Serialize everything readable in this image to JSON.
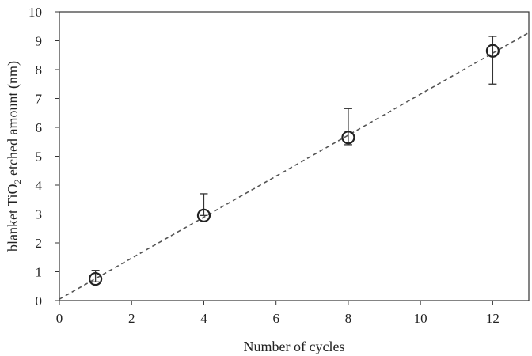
{
  "chart_data": {
    "type": "scatter",
    "xlabel": "Number of cycles",
    "ylabel": {
      "prefix": "blanket TiO",
      "subscript": "2",
      "suffix": " etched amount (nm)"
    },
    "xlim": [
      0,
      13
    ],
    "ylim": [
      0,
      10
    ],
    "xticks": [
      0,
      2,
      4,
      6,
      8,
      10,
      12
    ],
    "yticks": [
      0,
      1,
      2,
      3,
      4,
      5,
      6,
      7,
      8,
      9,
      10
    ],
    "grid": false,
    "legend": "none",
    "points": [
      {
        "x": 1,
        "y": 0.75,
        "err_low": 0.1,
        "err_high": 0.3
      },
      {
        "x": 4,
        "y": 2.95,
        "err_low": 0.0,
        "err_high": 0.75
      },
      {
        "x": 8,
        "y": 5.65,
        "err_low": 0.25,
        "err_high": 1.0
      },
      {
        "x": 12,
        "y": 8.65,
        "err_low": 1.15,
        "err_high": 0.5
      }
    ],
    "fit_line": {
      "style": "dashed",
      "slope": 0.71,
      "intercept": 0.05
    }
  }
}
